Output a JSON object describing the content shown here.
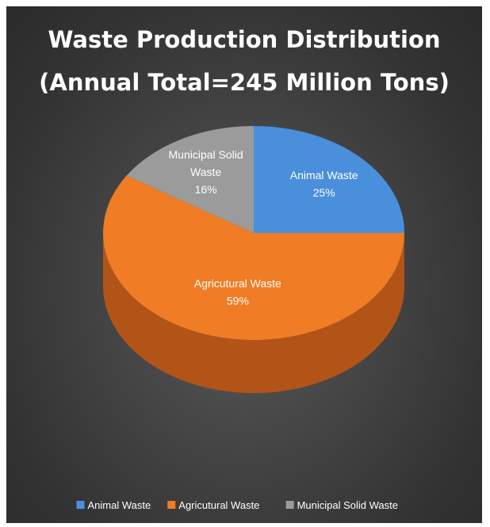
{
  "chart_data": {
    "type": "pie",
    "title": [
      "Waste Production Distribution",
      "(Annual Total=245 Million Tons)"
    ],
    "slices": [
      {
        "label": "Animal Waste",
        "value": 25,
        "display": "25%",
        "color": "#4a8fdc",
        "side": "#2f6fb6"
      },
      {
        "label": "Agricutural Waste",
        "value": 59,
        "display": "59%",
        "color": "#f07c25",
        "side": "#b25418"
      },
      {
        "label": "Municipal Solid Waste",
        "value": 16,
        "display": "16%",
        "color": "#9b9b9b",
        "side": "#707070"
      }
    ],
    "legend": {
      "position": "bottom",
      "entries": [
        "Animal Waste",
        "Agricutural Waste",
        "Municipal Solid Waste"
      ]
    },
    "label_lines": {
      "Animal Waste": [
        "Animal Waste"
      ],
      "Agricutural Waste": [
        "Agricutural Waste"
      ],
      "Municipal Solid Waste": [
        "Municipal Solid",
        "Waste"
      ]
    },
    "style": "3d"
  }
}
